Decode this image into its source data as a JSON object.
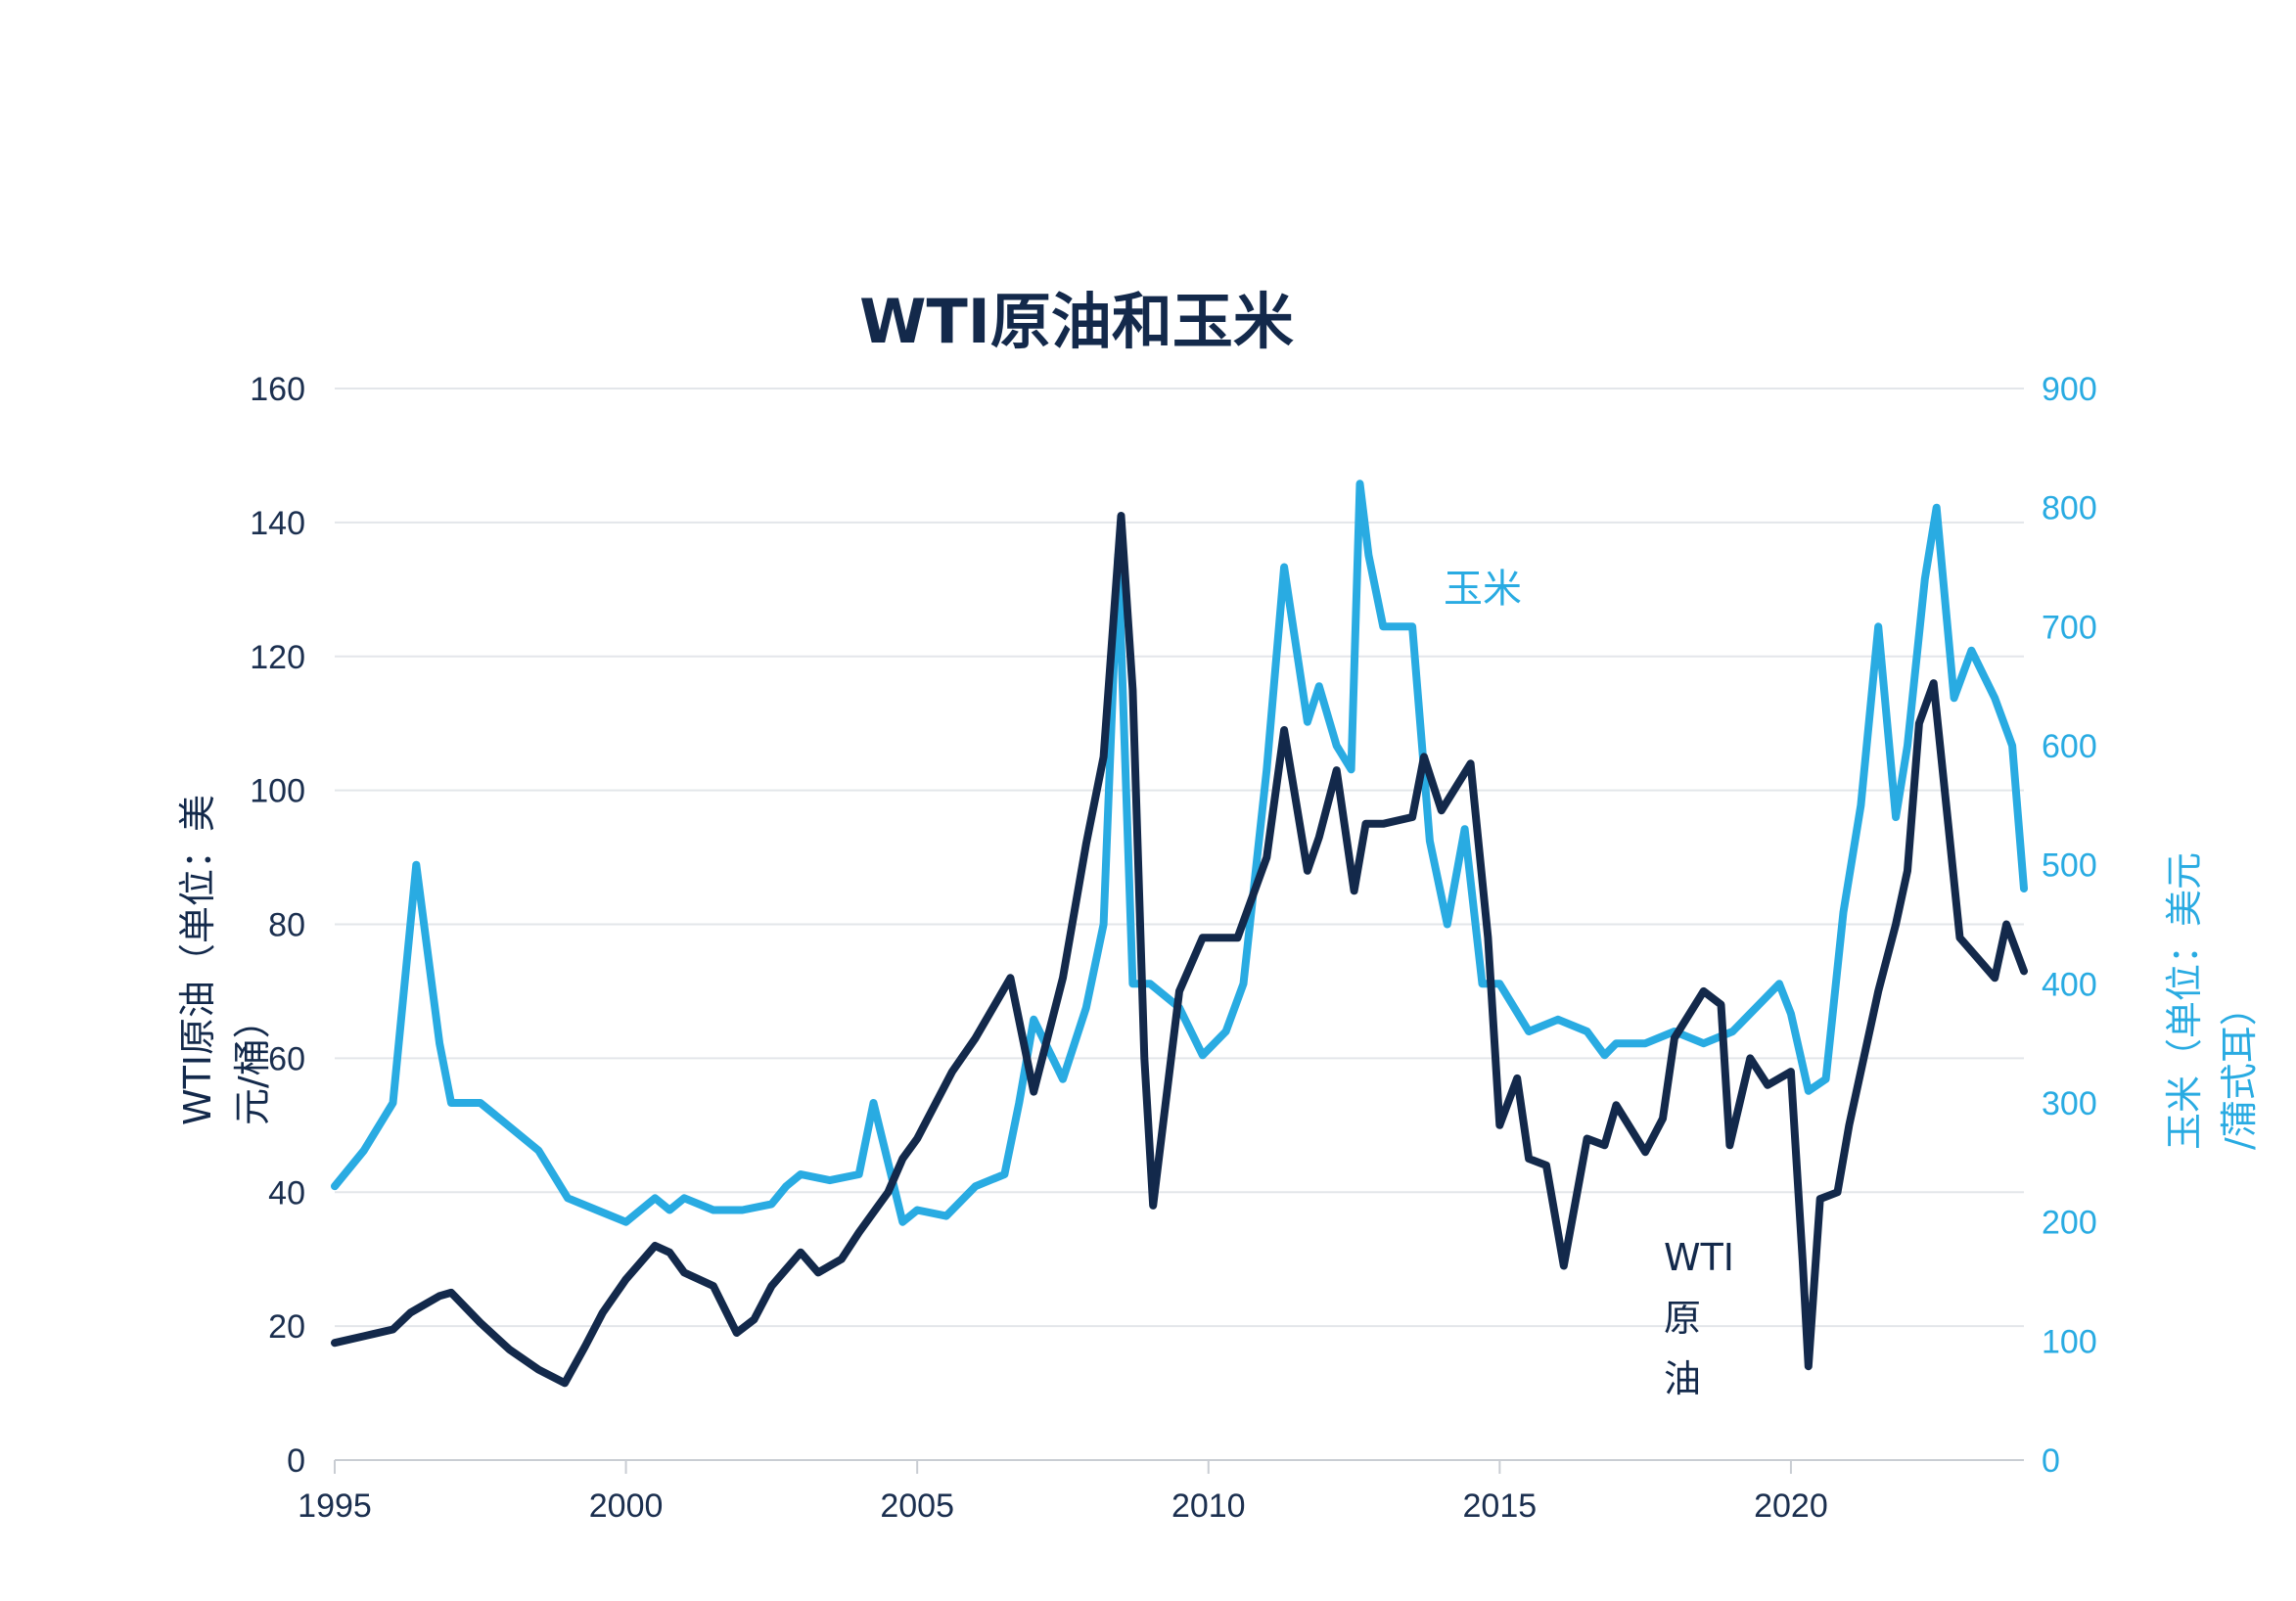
{
  "chart_data": {
    "type": "line",
    "title": "WTI原油和玉米",
    "ylabel_left": "WTI原油（单位：美元/桶）",
    "ylabel_right": "玉米（单位：美元/蒲式耳）",
    "x_ticks": [
      "1995",
      "2000",
      "2005",
      "2010",
      "2015",
      "2020"
    ],
    "xlim": [
      1995,
      2024
    ],
    "ylim_left": [
      0,
      160
    ],
    "ylim_right": [
      0,
      900
    ],
    "yticks_left": [
      "0",
      "20",
      "40",
      "60",
      "80",
      "100",
      "120",
      "140",
      "160"
    ],
    "yticks_right": [
      "0",
      "100",
      "200",
      "300",
      "400",
      "500",
      "600",
      "700",
      "800",
      "900"
    ],
    "grid": true,
    "colors": {
      "wti": "#13294b",
      "corn": "#29abe2",
      "grid": "#e3e6ea"
    },
    "annotations": {
      "corn": "玉米",
      "wti": "WTI原油"
    },
    "series": [
      {
        "name": "WTI原油",
        "axis": "left",
        "x": [
          1995.0,
          1995.5,
          1996.0,
          1996.3,
          1996.8,
          1997.0,
          1997.5,
          1998.0,
          1998.5,
          1998.95,
          1999.3,
          1999.6,
          2000.0,
          2000.5,
          2000.75,
          2001.0,
          2001.5,
          2001.9,
          2002.2,
          2002.5,
          2003.0,
          2003.3,
          2003.7,
          2004.0,
          2004.5,
          2004.75,
          2005.0,
          2005.6,
          2006.0,
          2006.6,
          2007.0,
          2007.5,
          2007.9,
          2008.2,
          2008.5,
          2008.7,
          2008.9,
          2009.05,
          2009.5,
          2009.9,
          2010.5,
          2011.0,
          2011.3,
          2011.7,
          2011.9,
          2012.2,
          2012.5,
          2012.7,
          2013.0,
          2013.5,
          2013.7,
          2014.0,
          2014.5,
          2014.8,
          2015.0,
          2015.3,
          2015.5,
          2015.8,
          2016.1,
          2016.5,
          2016.8,
          2017.0,
          2017.5,
          2017.8,
          2018.0,
          2018.5,
          2018.8,
          2018.95,
          2019.3,
          2019.6,
          2020.0,
          2020.2,
          2020.3,
          2020.5,
          2020.8,
          2021.0,
          2021.5,
          2021.8,
          2022.0,
          2022.2,
          2022.45,
          2022.7,
          2022.9,
          2023.2,
          2023.5,
          2023.7,
          2024.0
        ],
        "y": [
          17.5,
          18.5,
          19.5,
          22,
          24.5,
          25,
          20.5,
          16.5,
          13.5,
          11.5,
          17,
          22,
          27,
          32,
          31,
          28,
          26,
          19,
          21,
          26,
          31,
          28,
          30,
          34,
          40,
          45,
          48,
          58,
          63,
          72,
          55,
          72,
          92,
          105,
          141,
          115,
          60,
          38,
          70,
          78,
          78,
          90,
          109,
          88,
          93,
          103,
          85,
          95,
          95,
          96,
          105,
          97,
          104,
          78,
          50,
          57,
          45,
          44,
          29,
          48,
          47,
          53,
          46,
          51,
          63,
          70,
          68,
          47,
          60,
          56,
          58,
          30,
          14,
          39,
          40,
          50,
          70,
          80,
          88,
          110,
          116,
          95,
          78,
          75,
          72,
          80,
          73
        ]
      },
      {
        "name": "玉米",
        "axis": "right",
        "x": [
          1995.0,
          1995.5,
          1996.0,
          1996.4,
          1996.8,
          1997.0,
          1997.5,
          1998.0,
          1998.5,
          1999.0,
          1999.5,
          2000.0,
          2000.5,
          2000.75,
          2001.0,
          2001.5,
          2002.0,
          2002.5,
          2002.75,
          2003.0,
          2003.5,
          2004.0,
          2004.25,
          2004.75,
          2005.0,
          2005.5,
          2006.0,
          2006.5,
          2006.75,
          2007.0,
          2007.5,
          2007.9,
          2008.2,
          2008.45,
          2008.7,
          2009.0,
          2009.5,
          2009.9,
          2010.3,
          2010.6,
          2011.0,
          2011.3,
          2011.7,
          2011.9,
          2012.2,
          2012.45,
          2012.6,
          2012.75,
          2013.0,
          2013.5,
          2013.8,
          2014.1,
          2014.4,
          2014.7,
          2015.0,
          2015.5,
          2016.0,
          2016.5,
          2016.8,
          2017.0,
          2017.5,
          2018.0,
          2018.5,
          2019.0,
          2019.4,
          2019.8,
          2020.0,
          2020.3,
          2020.6,
          2020.9,
          2021.2,
          2021.5,
          2021.8,
          2022.0,
          2022.3,
          2022.5,
          2022.8,
          2023.1,
          2023.5,
          2023.8,
          2024.0
        ],
        "y": [
          230,
          260,
          300,
          500,
          350,
          300,
          300,
          280,
          260,
          220,
          210,
          200,
          220,
          210,
          220,
          210,
          210,
          215,
          230,
          240,
          235,
          240,
          300,
          200,
          210,
          205,
          230,
          240,
          300,
          370,
          320,
          380,
          450,
          760,
          400,
          400,
          380,
          340,
          360,
          400,
          580,
          750,
          620,
          650,
          600,
          580,
          820,
          760,
          700,
          700,
          520,
          450,
          530,
          400,
          400,
          360,
          370,
          360,
          340,
          350,
          350,
          360,
          350,
          360,
          380,
          400,
          375,
          310,
          320,
          460,
          550,
          700,
          540,
          600,
          740,
          800,
          640,
          680,
          640,
          600,
          480
        ]
      }
    ]
  }
}
